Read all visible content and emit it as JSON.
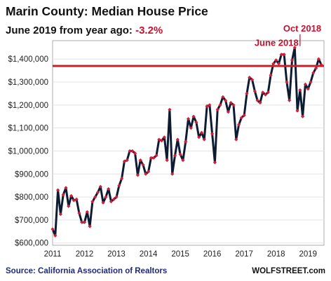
{
  "header": {
    "title": "Marin County: Median House Price",
    "subtitle_prefix": "June 2019 from year ago: ",
    "subtitle_change": "-3.2%"
  },
  "footer": {
    "source": "Source: California Association of Realtors",
    "brand": "WOLFSTREET.com"
  },
  "colors": {
    "line": "#0d1b33",
    "marker": "#d11f3a",
    "accent": "#c8102e",
    "reference_line": "#d11f2a",
    "grid": "#e3e3e3"
  },
  "chart_data": {
    "type": "line",
    "title": "Marin County: Median House Price",
    "subtitle": "June 2019 from year ago: -3.2%",
    "xlabel": "",
    "ylabel": "",
    "x_range": [
      2011.0,
      2019.5
    ],
    "ylim": [
      590000,
      1480000
    ],
    "yticks": [
      600000,
      700000,
      800000,
      900000,
      1000000,
      1100000,
      1200000,
      1300000,
      1400000
    ],
    "ytick_labels": [
      "$600,000",
      "$700,000",
      "$800,000",
      "$900,000",
      "$1,000,000",
      "$1,100,000",
      "$1,200,000",
      "$1,300,000",
      "$1,400,000"
    ],
    "xticks": [
      2011,
      2012,
      2013,
      2014,
      2015,
      2016,
      2017,
      2018,
      2019
    ],
    "xtick_labels": [
      "2011",
      "2012",
      "2013",
      "2014",
      "2015",
      "2016",
      "2017",
      "2018",
      "2019"
    ],
    "grid": "horizontal",
    "reference_line": {
      "value": 1370000,
      "label": ""
    },
    "annotations": [
      {
        "text": "June 2018",
        "x": 2018.42,
        "y": 1420000
      },
      {
        "text": "Oct 2018",
        "x": 2018.75,
        "y": 1450000
      }
    ],
    "series": [
      {
        "values": [
          660000,
          632000,
          830000,
          725000,
          810000,
          840000,
          760000,
          805000,
          785000,
          790000,
          730000,
          690000,
          690000,
          735000,
          672000,
          780000,
          800000,
          820000,
          845000,
          775000,
          800000,
          835000,
          780000,
          790000,
          800000,
          850000,
          880000,
          955000,
          960000,
          1000000,
          1000000,
          990000,
          895000,
          960000,
          940000,
          900000,
          910000,
          970000,
          970000,
          980000,
          1050000,
          1045000,
          1060000,
          960000,
          1180000,
          900000,
          980000,
          1050000,
          985000,
          960000,
          1040000,
          1140000,
          1100000,
          1150000,
          1125000,
          1060000,
          1080000,
          1050000,
          1195000,
          1200000,
          1075000,
          950000,
          1180000,
          1200000,
          1235000,
          1220000,
          1170000,
          1210000,
          1200000,
          1050000,
          1115000,
          1145000,
          1155000,
          1250000,
          1320000,
          1310000,
          1260000,
          1220000,
          1210000,
          1255000,
          1245000,
          1255000,
          1330000,
          1380000,
          1395000,
          1380000,
          1420000,
          1420000,
          1300000,
          1220000,
          1395000,
          1450000,
          1175000,
          1265000,
          1150000,
          1290000,
          1270000,
          1300000,
          1340000,
          1360000,
          1400000,
          1375000
        ]
      }
    ]
  }
}
